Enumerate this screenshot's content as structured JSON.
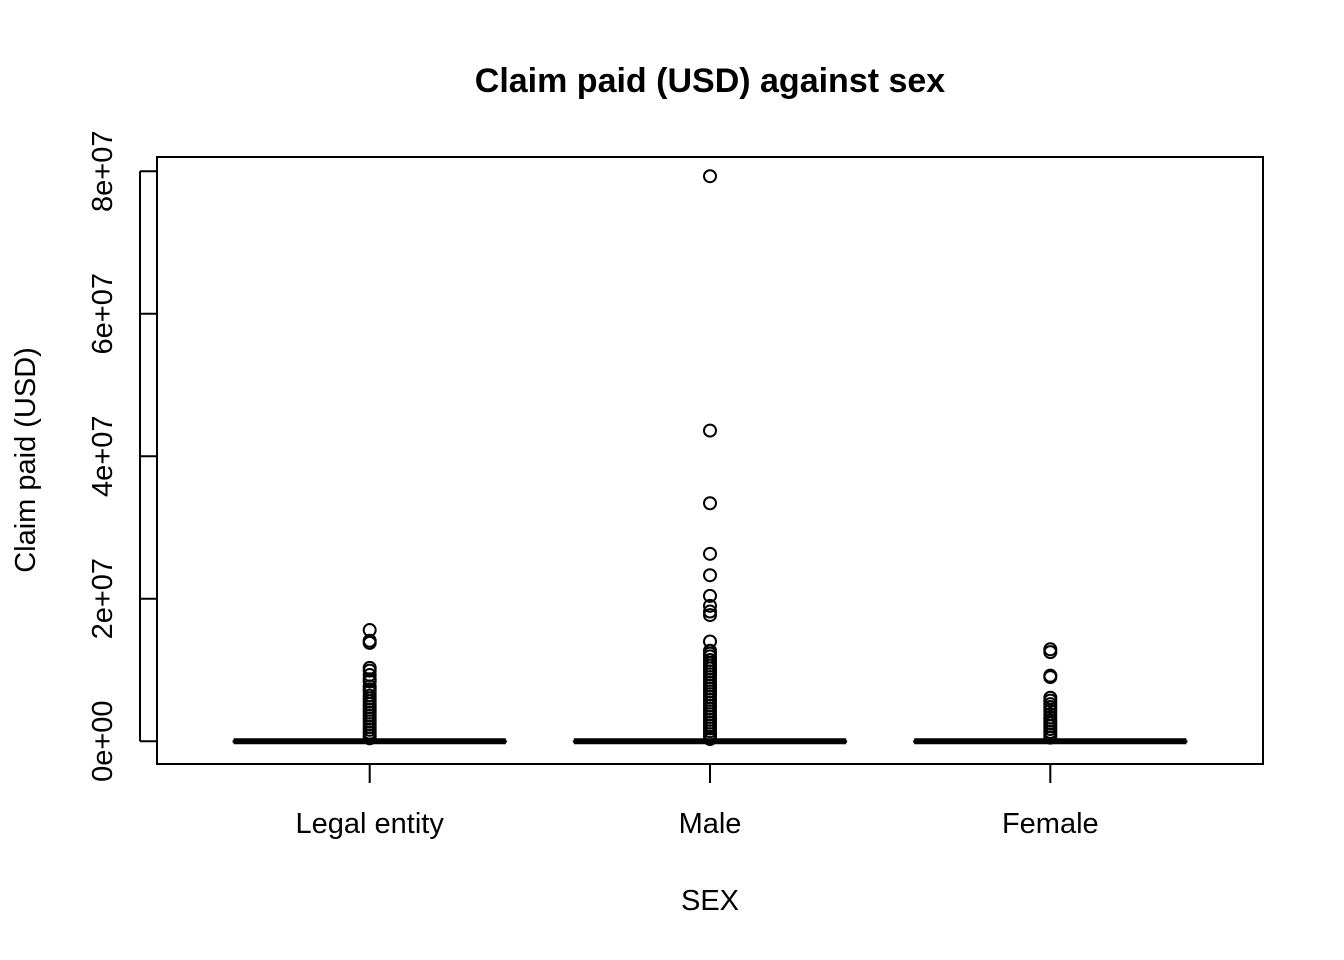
{
  "chart_data": {
    "type": "boxplot",
    "title": "Claim paid (USD) against sex",
    "xlabel": "SEX",
    "ylabel": "Claim paid (USD)",
    "categories": [
      "Legal entity",
      "Male",
      "Female"
    ],
    "ylim": [
      -3200000,
      82000000
    ],
    "y_ticks": [
      0,
      20000000,
      40000000,
      60000000,
      80000000
    ],
    "y_tick_labels": [
      "0e+00",
      "2e+07",
      "4e+07",
      "6e+07",
      "8e+07"
    ],
    "grid": false,
    "legend": "none",
    "boxes": [
      {
        "category": "Legal entity",
        "median": 0,
        "q1": 0,
        "q3": 0,
        "outliers": [
          15600000,
          14100000,
          13800000,
          10300000,
          9900000,
          9300000,
          8700000,
          8400000,
          7700000,
          7300000,
          6900000,
          6400000,
          6000000,
          5600000,
          5200000,
          4800000,
          4400000,
          4000000,
          3600000,
          3200000,
          2800000,
          2400000,
          2000000,
          1600000,
          1200000,
          800000,
          400000
        ]
      },
      {
        "category": "Male",
        "median": 0,
        "q1": 0,
        "q3": 0,
        "outliers": [
          79300000,
          43600000,
          33400000,
          26300000,
          23300000,
          20400000,
          19000000,
          18200000,
          17700000,
          14000000,
          12700000,
          12300000,
          11900000,
          11400000,
          11000000,
          10600000,
          10200000,
          9800000,
          9400000,
          9000000,
          8600000,
          8200000,
          7800000,
          7400000,
          7000000,
          6600000,
          6200000,
          5800000,
          5400000,
          5000000,
          4600000,
          4200000,
          3800000,
          3400000,
          3000000,
          2600000,
          2200000,
          1800000,
          1400000,
          1000000,
          600000,
          300000
        ]
      },
      {
        "category": "Female",
        "median": 0,
        "q1": 0,
        "q3": 0,
        "outliers": [
          12900000,
          12500000,
          9200000,
          9000000,
          6100000,
          5700000,
          5200000,
          4800000,
          4300000,
          3800000,
          3300000,
          2900000,
          2500000,
          2100000,
          1700000,
          1300000,
          900000,
          500000
        ]
      }
    ]
  }
}
